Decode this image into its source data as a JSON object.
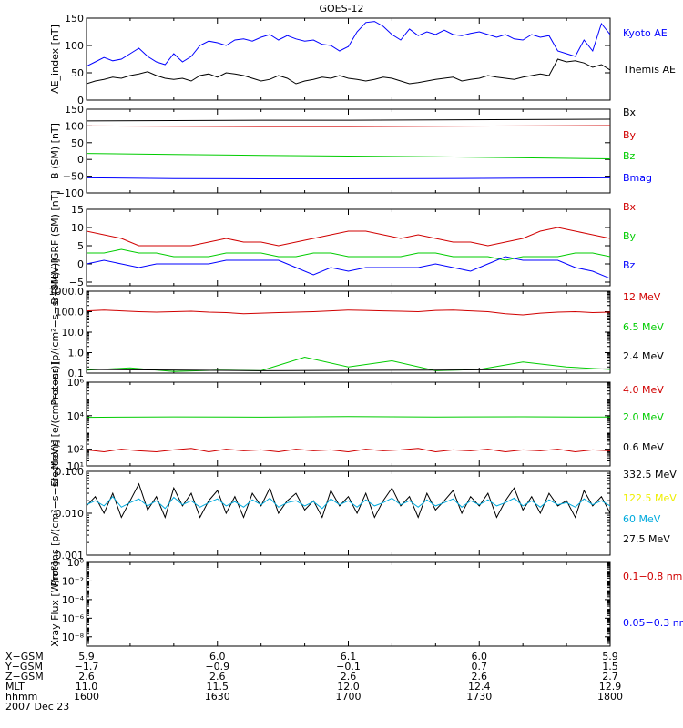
{
  "title": "GOES-12",
  "colors": {
    "black": "#000000",
    "blue": "#0000ff",
    "red": "#d00000",
    "green": "#00cc00",
    "yellow": "#eeee00",
    "cyan": "#00aadd"
  },
  "chart_data": [
    {
      "type": "line",
      "ylabel": "AE_index [nT]",
      "ylim": [
        0,
        150
      ],
      "yticks": [
        {
          "v": 0,
          "t": "0"
        },
        {
          "v": 50,
          "t": "50"
        },
        {
          "v": 100,
          "t": "100"
        },
        {
          "v": 150,
          "t": "150"
        }
      ],
      "series": [
        {
          "name": "Kyoto AE",
          "color": "blue",
          "x_start": 0,
          "x_step": 2,
          "values": [
            62,
            70,
            78,
            72,
            75,
            85,
            95,
            80,
            70,
            65,
            85,
            70,
            80,
            100,
            108,
            105,
            100,
            110,
            112,
            108,
            115,
            120,
            110,
            118,
            112,
            108,
            110,
            102,
            100,
            90,
            98,
            125,
            142,
            144,
            135,
            120,
            110,
            130,
            118,
            125,
            120,
            128,
            120,
            118,
            122,
            125,
            120,
            115,
            120,
            112,
            110,
            120,
            115,
            118,
            90,
            85,
            80,
            110,
            90,
            140,
            120,
            95,
            80,
            60,
            55,
            60,
            70,
            65,
            50,
            55,
            60,
            40,
            30,
            25,
            45,
            55,
            40,
            60,
            72,
            60,
            45,
            55,
            50,
            40
          ]
        },
        {
          "name": "Themis AE",
          "color": "black",
          "x_start": 0,
          "x_step": 2,
          "values": [
            30,
            35,
            38,
            42,
            40,
            45,
            48,
            52,
            45,
            40,
            38,
            40,
            35,
            45,
            48,
            42,
            50,
            48,
            45,
            40,
            35,
            38,
            45,
            40,
            30,
            35,
            38,
            42,
            40,
            45,
            40,
            38,
            35,
            38,
            42,
            40,
            35,
            30,
            32,
            35,
            38,
            40,
            42,
            35,
            38,
            40,
            45,
            42,
            40,
            38,
            42,
            45,
            48,
            45,
            75,
            70,
            72,
            68,
            60,
            65,
            55,
            60,
            65,
            62,
            70,
            68,
            60,
            55,
            50,
            45,
            55,
            60,
            65,
            60,
            40,
            30,
            25,
            35,
            50,
            65,
            55,
            40,
            45,
            50
          ]
        }
      ]
    },
    {
      "type": "line",
      "ylabel": "B (SM) [nT]",
      "ylim": [
        -100,
        150
      ],
      "yticks": [
        {
          "v": -100,
          "t": "−100"
        },
        {
          "v": -50,
          "t": "−50"
        },
        {
          "v": 0,
          "t": "0"
        },
        {
          "v": 50,
          "t": "50"
        },
        {
          "v": 100,
          "t": "100"
        },
        {
          "v": 150,
          "t": "150"
        }
      ],
      "series": [
        {
          "name": "Bx",
          "color": "black",
          "x_start": 0,
          "x_step": 20,
          "values": [
            115,
            116,
            117,
            117,
            118,
            119,
            120,
            121,
            122
          ]
        },
        {
          "name": "By",
          "color": "red",
          "x_start": 0,
          "x_step": 20,
          "values": [
            100,
            99,
            98,
            98,
            99,
            100,
            101,
            101,
            102
          ]
        },
        {
          "name": "Bz",
          "color": "green",
          "x_start": 0,
          "x_step": 20,
          "values": [
            18,
            15,
            12,
            10,
            8,
            5,
            2,
            -3,
            -8
          ]
        },
        {
          "name": "Bmag",
          "color": "blue",
          "x_start": 0,
          "x_step": 20,
          "values": [
            -55,
            -57,
            -58,
            -58,
            -57,
            -56,
            -55,
            -55,
            -56
          ]
        }
      ]
    },
    {
      "type": "line",
      "ylabel": "B (SM)−IGRF (SM) [nT]",
      "ylim": [
        -6,
        15
      ],
      "yticks": [
        {
          "v": -5,
          "t": "−5"
        },
        {
          "v": 0,
          "t": "0"
        },
        {
          "v": 5,
          "t": "5"
        },
        {
          "v": 10,
          "t": "10"
        },
        {
          "v": 15,
          "t": "15"
        }
      ],
      "series": [
        {
          "name": "Bx",
          "color": "red",
          "x_start": 0,
          "x_step": 4,
          "values": [
            9,
            8,
            7,
            5,
            5,
            5,
            5,
            6,
            7,
            6,
            6,
            5,
            6,
            7,
            8,
            9,
            9,
            8,
            7,
            8,
            7,
            6,
            6,
            5,
            6,
            7,
            9,
            10,
            9,
            8,
            7,
            6,
            7,
            8,
            8,
            9,
            9,
            10,
            10,
            9,
            8,
            7,
            6,
            7,
            8,
            8,
            7,
            6,
            7,
            8,
            9,
            8,
            8,
            7,
            6,
            7,
            9,
            10,
            10,
            9,
            9,
            8,
            8,
            9
          ]
        },
        {
          "name": "By",
          "color": "green",
          "x_start": 0,
          "x_step": 4,
          "values": [
            3,
            3,
            4,
            3,
            3,
            2,
            2,
            2,
            3,
            3,
            3,
            2,
            2,
            3,
            3,
            2,
            2,
            2,
            2,
            3,
            3,
            2,
            2,
            2,
            1,
            2,
            2,
            2,
            3,
            3,
            2,
            2,
            2,
            2,
            2,
            3,
            3,
            3,
            3,
            2,
            2,
            2,
            2,
            3,
            2,
            2,
            1,
            2,
            3,
            3,
            3,
            2,
            2,
            3,
            4,
            3,
            2,
            2,
            2,
            2,
            2,
            2,
            2,
            1
          ]
        },
        {
          "name": "Bz",
          "color": "blue",
          "x_start": 0,
          "x_step": 4,
          "values": [
            0,
            1,
            0,
            -1,
            0,
            0,
            0,
            0,
            1,
            1,
            1,
            1,
            -1,
            -3,
            -1,
            -2,
            -1,
            -1,
            -1,
            -1,
            0,
            -1,
            -2,
            0,
            2,
            1,
            1,
            1,
            -1,
            -2,
            -4,
            -1,
            -1,
            0,
            0,
            0,
            -1,
            -2,
            -3,
            -3,
            -2,
            0,
            2,
            1,
            0,
            -1,
            -1,
            -1,
            -2,
            -5,
            -4,
            -2,
            -1,
            0,
            1,
            1,
            0,
            0,
            1,
            0,
            0,
            1,
            0,
            0
          ]
        }
      ]
    },
    {
      "type": "line",
      "ylabel": "Protons [p/(cm²−s−sr−MeV)]",
      "yscale": "log",
      "ylim": [
        0.1,
        1000
      ],
      "yticks": [
        {
          "v": 0.1,
          "t": "0.1"
        },
        {
          "v": 1,
          "t": "1.0"
        },
        {
          "v": 10,
          "t": "10.0"
        },
        {
          "v": 100,
          "t": "100.0"
        },
        {
          "v": 1000,
          "t": "1000.0"
        }
      ],
      "series": [
        {
          "name": "12 MeV",
          "color": "red",
          "x_start": 0,
          "x_step": 4,
          "values": [
            110,
            120,
            110,
            100,
            95,
            100,
            105,
            95,
            90,
            80,
            85,
            90,
            95,
            100,
            110,
            120,
            115,
            110,
            105,
            100,
            115,
            120,
            110,
            100,
            80,
            70,
            85,
            95,
            100,
            90,
            95,
            100,
            120,
            130,
            140,
            120,
            110,
            105,
            100,
            115,
            120,
            110,
            100,
            95,
            105,
            110,
            100,
            105,
            100,
            90,
            80,
            70,
            60,
            75,
            80,
            60,
            70,
            90,
            100,
            110,
            120,
            110,
            115,
            120
          ]
        },
        {
          "name": "6.5 MeV",
          "color": "green",
          "x_start": 0,
          "x_step": 10,
          "values": [
            0.14,
            0.18,
            0.12,
            0.14,
            0.13,
            0.6,
            0.2,
            0.4,
            0.13,
            0.15,
            0.35,
            0.2,
            0.15,
            0.5,
            0.2,
            0.13,
            0.25,
            0.13,
            0.15
          ]
        },
        {
          "name": "2.4 MeV",
          "color": "black",
          "x_start": 0,
          "x_step": 40,
          "values": [
            0.15,
            0.13,
            0.14,
            0.16,
            0.13
          ]
        }
      ]
    },
    {
      "type": "line",
      "ylabel": "Electrons [e/(cm²−s−sr)]",
      "yscale": "log",
      "ylim": [
        10,
        1000000
      ],
      "yticks": [
        {
          "v": 10,
          "t": "10¹"
        },
        {
          "v": 100,
          "t": "10²"
        },
        {
          "v": 10000,
          "t": "10⁴"
        },
        {
          "v": 1000000,
          "t": "10⁶"
        }
      ],
      "series": [
        {
          "name": "4.0 MeV",
          "color": "red",
          "x_start": 0,
          "x_step": 4,
          "values": [
            90,
            70,
            100,
            80,
            70,
            90,
            110,
            70,
            100,
            80,
            90,
            70,
            100,
            80,
            90,
            70,
            100,
            80,
            90,
            110,
            70,
            90,
            80,
            100,
            70,
            90,
            80,
            100,
            70,
            90,
            80,
            100,
            70,
            90,
            80,
            100,
            70,
            90,
            80,
            100,
            70,
            90,
            80,
            100,
            70,
            90,
            80,
            100,
            70,
            90,
            80,
            100,
            70,
            90,
            80,
            100,
            70,
            90,
            80,
            100,
            70,
            90,
            80,
            100
          ]
        },
        {
          "name": "2.0 MeV",
          "color": "green",
          "x_start": 0,
          "x_step": 20,
          "values": [
            8000,
            8500,
            8200,
            8800,
            8400,
            8600,
            8300,
            8700,
            8500
          ]
        },
        {
          "name": "0.6 MeV",
          "color": "black",
          "x_start": 0,
          "x_step": 40,
          "values": [
            1000000,
            1000000,
            1000000,
            1000000,
            1000000
          ]
        }
      ]
    },
    {
      "type": "line",
      "ylabel": "Protons [p/(cm²−s−sr−MeV)]",
      "yscale": "log",
      "ylim": [
        0.001,
        0.1
      ],
      "yticks": [
        {
          "v": 0.001,
          "t": "0.001"
        },
        {
          "v": 0.01,
          "t": "0.010"
        },
        {
          "v": 0.1,
          "t": "0.100"
        }
      ],
      "series": [
        {
          "name": "332.5 MeV",
          "color": "black",
          "x_start": 0,
          "x_step": 2,
          "values": [
            0.015,
            0.025,
            0.01,
            0.03,
            0.008,
            0.02,
            0.05,
            0.012,
            0.025,
            0.008,
            0.04,
            0.015,
            0.03,
            0.008,
            0.02,
            0.035,
            0.01,
            0.025,
            0.008,
            0.03,
            0.015,
            0.04,
            0.01,
            0.02,
            0.03,
            0.012,
            0.02,
            0.008,
            0.035,
            0.015,
            0.025,
            0.01,
            0.03,
            0.008,
            0.02,
            0.04,
            0.015,
            0.025,
            0.008,
            0.03,
            0.012,
            0.02,
            0.035,
            0.01,
            0.025,
            0.015,
            0.03,
            0.008,
            0.02,
            0.04,
            0.012,
            0.025,
            0.01,
            0.03,
            0.015,
            0.02,
            0.008,
            0.035,
            0.015,
            0.025,
            0.01,
            0.04,
            0.012,
            0.02,
            0.03,
            0.008,
            0.025,
            0.015,
            0.035,
            0.01,
            0.02,
            0.03,
            0.012,
            0.008,
            0.025,
            0.015,
            0.03,
            0.01,
            0.02,
            0.012,
            0.025,
            0.015,
            0.02,
            0.01
          ]
        },
        {
          "name": "122.5 MeV",
          "color": "yellow",
          "x_start": 0,
          "x_step": 2,
          "values": []
        },
        {
          "name": "60 MeV",
          "color": "cyan",
          "x_start": 0,
          "x_step": 2,
          "values": [
            0.016,
            0.02,
            0.015,
            0.025,
            0.014,
            0.018,
            0.022,
            0.015,
            0.02,
            0.013,
            0.024,
            0.016,
            0.02,
            0.014,
            0.018,
            0.022,
            0.015,
            0.019,
            0.014,
            0.021,
            0.016,
            0.023,
            0.014,
            0.018,
            0.02,
            0.015,
            0.019,
            0.013,
            0.022,
            0.016,
            0.02,
            0.014,
            0.021,
            0.015,
            0.018,
            0.023,
            0.016,
            0.02,
            0.014,
            0.021,
            0.015,
            0.018,
            0.022,
            0.014,
            0.02,
            0.016,
            0.021,
            0.015,
            0.018,
            0.023,
            0.015,
            0.02,
            0.014,
            0.021,
            0.016,
            0.018,
            0.014,
            0.022,
            0.016,
            0.02,
            0.015,
            0.023,
            0.015,
            0.018,
            0.021,
            0.014,
            0.02,
            0.016,
            0.022,
            0.015,
            0.018,
            0.021,
            0.015,
            0.014,
            0.02,
            0.016,
            0.021,
            0.015,
            0.018,
            0.016,
            0.02,
            0.016,
            0.018,
            0.015
          ]
        },
        {
          "name": "27.5 MeV",
          "color": "black",
          "x_start": 0,
          "x_step": 2,
          "values": []
        }
      ]
    },
    {
      "type": "line",
      "ylabel": "Xray Flux [W/m²]",
      "yscale": "log",
      "ylim": [
        1e-09,
        1
      ],
      "yticks": [
        {
          "v": 1,
          "t": "10⁰"
        },
        {
          "v": 0.01,
          "t": "10⁻²"
        },
        {
          "v": 0.0001,
          "t": "10⁻⁴"
        },
        {
          "v": 1e-06,
          "t": "10⁻⁶"
        },
        {
          "v": 1e-08,
          "t": "10⁻⁸"
        }
      ],
      "series": [
        {
          "name": "0.1−0.8 nm",
          "color": "red",
          "x_start": 0,
          "x_step": 1,
          "values": []
        },
        {
          "name": "0.05−0.3 nm",
          "color": "blue",
          "x_start": 0,
          "x_step": 1,
          "values": []
        }
      ]
    }
  ],
  "x_axis": {
    "range_minutes": [
      0,
      120
    ],
    "tick_positions_minutes": [
      0,
      30,
      60,
      90,
      120
    ],
    "rows": [
      {
        "label": "X−GSM",
        "values": [
          "5.9",
          "6.0",
          "6.1",
          "6.0",
          "5.9"
        ]
      },
      {
        "label": "Y−GSM",
        "values": [
          "−1.7",
          "−0.9",
          "−0.1",
          "0.7",
          "1.5"
        ]
      },
      {
        "label": "Z−GSM",
        "values": [
          "2.6",
          "2.6",
          "2.6",
          "2.6",
          "2.7"
        ]
      },
      {
        "label": "MLT",
        "values": [
          "11.0",
          "11.5",
          "12.0",
          "12.4",
          "12.9"
        ]
      },
      {
        "label": "hhmm",
        "values": [
          "1600",
          "1630",
          "1700",
          "1730",
          "1800"
        ]
      }
    ],
    "date": "2007 Dec 23"
  }
}
